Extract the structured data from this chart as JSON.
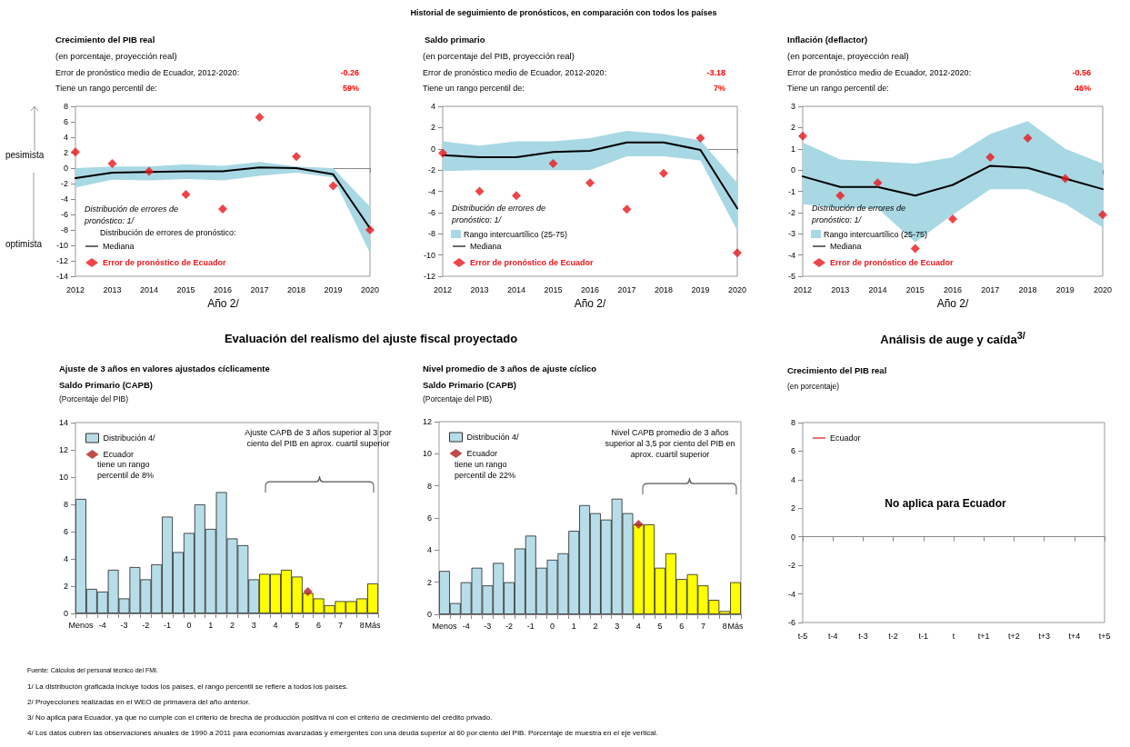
{
  "chart_data": [
    {
      "type": "line",
      "title": "Crecimiento del PIB real",
      "subtitle": "(en porcentaje, proyección real)",
      "xlabel": "Año 2/",
      "categories": [
        "2012",
        "2013",
        "2014",
        "2015",
        "2016",
        "2017",
        "2018",
        "2019",
        "2020"
      ],
      "ylim": [
        -14,
        8
      ],
      "yticks": [
        -14,
        -12,
        -10,
        -8,
        -6,
        -4,
        -2,
        0,
        2,
        4,
        6,
        8
      ],
      "legend": "bottom left",
      "legend_title": "Distribución de errores de pronóstico: 1/",
      "annotations": [
        "Historial de seguimiento de pronósticos, en comparación con todos los países",
        "Error de pronóstico medio de Ecuador, 2012-2020:",
        "-0.26",
        "Tiene un rango percentil de:",
        "59%",
        "pesimista",
        "optimista",
        "Distribución de errores de pronóstico:"
      ],
      "series": [
        {
          "type": "line",
          "name": "Mediana",
          "color": "#000000",
          "values": [
            -1.3,
            -0.6,
            -0.5,
            -0.4,
            -0.4,
            0.1,
            0,
            -0.8,
            -7.8
          ],
          "lower": [
            -2.5,
            -1.5,
            -1.6,
            -1.4,
            -1.6,
            -1.0,
            -0.6,
            -1.2,
            -11
          ],
          "upper": [
            0,
            0.2,
            0.2,
            0.5,
            0.3,
            0.8,
            0.2,
            0,
            -5
          ]
        },
        {
          "type": "scatter",
          "name": "Error de pronóstico de Ecuador",
          "color": "#e8161c",
          "marker": "diamond",
          "values": [
            2.1,
            0.6,
            -0.4,
            -3.4,
            -5.3,
            6.6,
            1.5,
            -2.3,
            -8
          ]
        }
      ]
    },
    {
      "type": "line",
      "title": "Saldo primario",
      "subtitle": "(en porcentaje del PIB, proyección real)",
      "xlabel": "Año 2/",
      "categories": [
        "2012",
        "2013",
        "2014",
        "2015",
        "2016",
        "2017",
        "2018",
        "2019",
        "2020"
      ],
      "ylim": [
        -12,
        4
      ],
      "yticks": [
        -12,
        -10,
        -8,
        -6,
        -4,
        -2,
        0,
        2,
        4
      ],
      "legend": "bottom left",
      "legend_title": "Distribución de errores de pronóstico: 1/",
      "annotations": [
        "Error de pronóstico medio de Ecuador, 2012-2020:",
        "-3.18",
        "Tiene un rango percentil de:",
        "7%",
        "Rango intercuartílico (25-75)"
      ],
      "series": [
        {
          "type": "line",
          "name": "Mediana",
          "color": "#000000",
          "values": [
            -0.6,
            -0.8,
            -0.8,
            -0.3,
            -0.2,
            0.6,
            0.6,
            -0.1,
            -5.6
          ],
          "lower": [
            -2.1,
            -2,
            -2,
            -2,
            -2,
            -0.7,
            -0.7,
            -1.1,
            -7.7
          ],
          "upper": [
            0.7,
            0.3,
            0.7,
            0.7,
            1,
            1.7,
            1.4,
            0.8,
            -3.2
          ]
        },
        {
          "type": "scatter",
          "name": "Error de pronóstico de Ecuador",
          "color": "#e8161c",
          "marker": "diamond",
          "values": [
            -0.4,
            -4,
            -4.4,
            -1.4,
            -3.2,
            -5.7,
            -2.3,
            1,
            -9.8
          ]
        }
      ]
    },
    {
      "type": "line",
      "title": "Inflación (deflactor)",
      "subtitle": "(en porcentaje, proyección real)",
      "xlabel": "Año 2/",
      "categories": [
        "2012",
        "2013",
        "2014",
        "2015",
        "2016",
        "2017",
        "2018",
        "2019",
        "2020"
      ],
      "ylim": [
        -5,
        3
      ],
      "yticks": [
        -5,
        -4,
        -3,
        -2,
        -1,
        0,
        1,
        2,
        3
      ],
      "legend": "bottom left",
      "legend_title": "Distribución de errores de pronóstico: 1/",
      "annotations": [
        "Error de pronóstico medio de Ecuador, 2012-2020:",
        "-0.56",
        "Tiene un rango percentil de:",
        "46%",
        "Rango intercuartílico (25-75)"
      ],
      "series": [
        {
          "type": "line",
          "name": "Mediana",
          "color": "#000000",
          "values": [
            -0.3,
            -0.8,
            -0.8,
            -1.2,
            -0.7,
            0.2,
            0.1,
            -0.4,
            -0.9
          ],
          "lower": [
            -1.6,
            -1.8,
            -1.8,
            -3.4,
            -2.1,
            -0.9,
            -0.9,
            -1.6,
            -2.7
          ],
          "upper": [
            1.3,
            0.5,
            0.4,
            0.3,
            0.6,
            1.7,
            2.3,
            1,
            0.3
          ]
        },
        {
          "type": "scatter",
          "name": "Error de pronóstico de Ecuador",
          "color": "#e8161c",
          "marker": "diamond",
          "values": [
            1.6,
            -1.2,
            -0.6,
            -3.7,
            -2.3,
            0.6,
            1.5,
            -0.4,
            -2.1
          ]
        }
      ]
    },
    {
      "type": "bar",
      "title": "Ajuste de 3 años en valores ajustados cíclicamente",
      "subtitle": "Saldo Primario (CAPB)",
      "ylabel": "(Porcentaje del PIB)",
      "categories": [
        "Menos",
        null,
        "-4",
        null,
        "-3",
        null,
        "-2",
        null,
        "-1",
        null,
        "0",
        null,
        "1",
        null,
        "2",
        null,
        "3",
        null,
        "4",
        null,
        "5",
        null,
        "6",
        null,
        "7",
        null,
        "8",
        "Más"
      ],
      "ylim": [
        0,
        14
      ],
      "yticks": [
        0,
        2,
        4,
        6,
        8,
        10,
        12,
        14
      ],
      "legend": "top left",
      "annotations": [
        "Evaluación del realismo del ajuste fiscal proyectado",
        "tiene un rango percentil de 8%",
        "Ajuste CAPB de 3 años superior al 3 por ciento del PIB en aprox. cuartil superior",
        "Fuente: Cálculos del personal técnico del FMI.",
        "1/ La distribución graficada incluye todos los países, el rango percentil se refiere a todos los países.",
        "2/ Proyecciones realizadas en el WEO de primavera del año anterior.",
        "3/ No aplica para Ecuador, ya que no cumple con el criterio de brecha de producción positiva ni con el criterio de crecimiento del crédito privado.",
        "4/ Los datos cubren las observaciones anuales de 1990 a 2011 para economías avanzadas y emergentes con una deuda superior al 60 por ciento del PIB. Porcentaje de muestra en el eje vertical."
      ],
      "series": [
        {
          "type": "bar",
          "name": "Distribución 4/",
          "color": "#b7dde8",
          "colors": [
            "#b7dde8",
            "#b7dde8",
            "#b7dde8",
            "#b7dde8",
            "#b7dde8",
            "#b7dde8",
            "#b7dde8",
            "#b7dde8",
            "#b7dde8",
            "#b7dde8",
            "#b7dde8",
            "#b7dde8",
            "#b7dde8",
            "#b7dde8",
            "#b7dde8",
            "#b7dde8",
            "#b7dde8",
            "#ffff00",
            "#ffff00",
            "#ffff00",
            "#ffff00",
            "#ffff00",
            "#ffff00",
            "#ffff00",
            "#ffff00",
            "#ffff00",
            "#ffff00",
            "#ffff00"
          ],
          "values": [
            8.4,
            1.8,
            1.6,
            3.2,
            1.1,
            3.4,
            2.5,
            3.6,
            7.1,
            4.5,
            5.9,
            8.0,
            6.2,
            8.9,
            5.5,
            5.0,
            2.5,
            2.9,
            2.9,
            3.2,
            2.7,
            1.5,
            1.1,
            0.6,
            0.9,
            0.9,
            1.1,
            2.2
          ]
        },
        {
          "type": "scatter",
          "name": "Ecuador",
          "color": "#b01e1e",
          "marker": "diamond",
          "values": [
            null,
            null,
            null,
            null,
            null,
            null,
            null,
            null,
            null,
            null,
            null,
            null,
            null,
            null,
            null,
            null,
            null,
            null,
            null,
            null,
            null,
            1.6,
            null,
            null,
            null,
            null,
            null,
            null
          ]
        }
      ]
    },
    {
      "type": "bar",
      "title": "Nivel promedio de 3 años de ajuste cíclico",
      "subtitle": "Saldo Primario (CAPB)",
      "ylabel": "(Porcentaje del PIB)",
      "categories": [
        "Menos",
        null,
        "-4",
        null,
        "-3",
        null,
        "-2",
        null,
        "-1",
        null,
        "0",
        null,
        "1",
        null,
        "2",
        null,
        "3",
        null,
        "4",
        null,
        "5",
        null,
        "6",
        null,
        "7",
        null,
        "8",
        "Más"
      ],
      "ylim": [
        0,
        12
      ],
      "yticks": [
        0,
        2,
        4,
        6,
        8,
        10,
        12
      ],
      "legend": "top left",
      "annotations": [
        "tiene un rango percentil de 22%",
        "Nivel CAPB promedio de 3 años superior al 3,5 por ciento del PIB en aprox. cuartil superior"
      ],
      "series": [
        {
          "type": "bar",
          "name": "Distribución 4/",
          "color": "#b7dde8",
          "colors": [
            "#b7dde8",
            "#b7dde8",
            "#b7dde8",
            "#b7dde8",
            "#b7dde8",
            "#b7dde8",
            "#b7dde8",
            "#b7dde8",
            "#b7dde8",
            "#b7dde8",
            "#b7dde8",
            "#b7dde8",
            "#b7dde8",
            "#b7dde8",
            "#b7dde8",
            "#b7dde8",
            "#b7dde8",
            "#b7dde8",
            "#ffff00",
            "#ffff00",
            "#ffff00",
            "#ffff00",
            "#ffff00",
            "#ffff00",
            "#ffff00",
            "#ffff00",
            "#ffff00",
            "#ffff00"
          ],
          "values": [
            2.7,
            0.7,
            2.0,
            2.9,
            1.8,
            3.2,
            2.0,
            4.1,
            4.9,
            2.9,
            3.4,
            3.8,
            5.2,
            6.8,
            6.3,
            5.9,
            7.2,
            6.3,
            5.6,
            5.6,
            2.9,
            3.8,
            2.2,
            2.5,
            1.8,
            0.9,
            0.2,
            2.0
          ]
        },
        {
          "type": "scatter",
          "name": "Ecuador",
          "color": "#b01e1e",
          "marker": "diamond",
          "values": [
            null,
            null,
            null,
            null,
            null,
            null,
            null,
            null,
            null,
            null,
            null,
            null,
            null,
            null,
            null,
            null,
            null,
            null,
            5.6,
            null,
            null,
            null,
            null,
            null,
            null,
            null,
            null,
            null
          ]
        }
      ]
    },
    {
      "type": "line",
      "title": "Crecimiento del PIB real",
      "ylabel": "(en porcentaje)",
      "categories": [
        "t-5",
        "t-4",
        "t-3",
        "t-2",
        "t-1",
        "t",
        "t+1",
        "t+2",
        "t+3",
        "t+4",
        "t+5"
      ],
      "ylim": [
        -6,
        8
      ],
      "yticks": [
        -6,
        -4,
        -2,
        0,
        2,
        4,
        6,
        8
      ],
      "legend": "top left",
      "annotations": [
        "Análisis de auge y caída$^{3/}$",
        "No aplica para Ecuador"
      ],
      "series": [
        {
          "type": "line",
          "name": "Ecuador",
          "color": "#d01010",
          "values": [
            null,
            null,
            null,
            null,
            null,
            null,
            null,
            null,
            null,
            null,
            null
          ]
        }
      ]
    }
  ]
}
